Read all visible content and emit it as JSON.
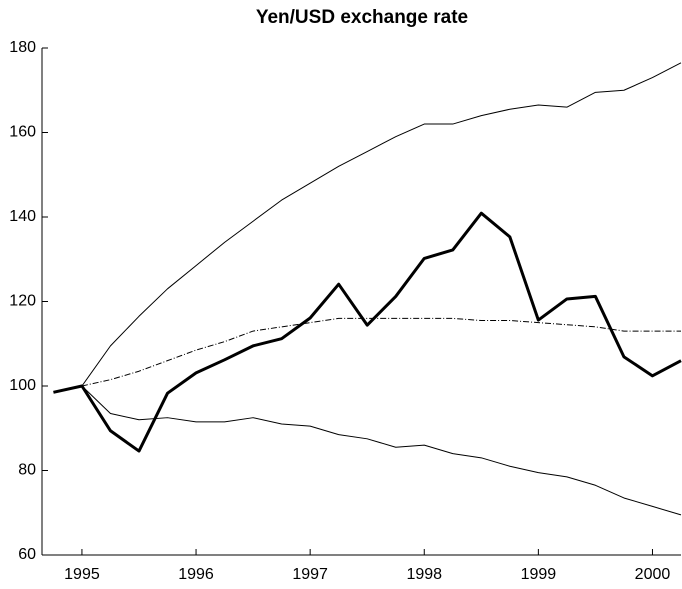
{
  "chart_data": {
    "type": "line",
    "title": "Yen/USD exchange rate",
    "x": [
      1994.75,
      1995,
      1995.25,
      1995.5,
      1995.75,
      1996,
      1996.25,
      1996.5,
      1996.75,
      1997,
      1997.25,
      1997.5,
      1997.75,
      1998,
      1998.25,
      1998.5,
      1998.75,
      1999,
      1999.25,
      1999.5,
      1999.75,
      2000,
      2000.25
    ],
    "series": [
      {
        "color": "#000000",
        "width": 3,
        "dash": "none",
        "values": [
          98.5,
          100,
          89.4,
          84.6,
          98.3,
          103.1,
          106.2,
          109.5,
          111.2,
          116.1,
          124.1,
          114.4,
          121.2,
          130.2,
          132.2,
          140.9,
          135.3,
          115.6,
          120.6,
          121.2,
          106.9,
          102.4,
          106
        ]
      },
      {
        "color": "#000000",
        "width": 1,
        "dash": "none",
        "values": [
          null,
          100,
          109.5,
          116.5,
          123,
          128.5,
          134,
          139,
          144,
          148,
          152,
          155.5,
          159,
          162,
          162,
          164,
          165.5,
          166.5,
          166,
          169.5,
          170,
          173,
          176.5
        ]
      },
      {
        "color": "#000000",
        "width": 1,
        "dash": "none",
        "values": [
          null,
          100,
          93.5,
          92,
          92.5,
          91.5,
          91.5,
          92.5,
          91,
          90.5,
          88.5,
          87.5,
          85.5,
          86,
          84,
          83,
          81,
          79.5,
          78.5,
          76.5,
          73.5,
          71.5,
          69.5
        ]
      },
      {
        "color": "#000000",
        "width": 1,
        "dash": "6 2 1 2",
        "values": [
          null,
          100,
          101.5,
          103.5,
          106,
          108.5,
          110.5,
          113,
          114,
          115,
          116,
          116,
          116,
          116,
          116,
          115.5,
          115.5,
          115,
          114.5,
          114,
          113,
          113,
          113
        ]
      }
    ],
    "xlim": [
      1994.65,
      2000.25
    ],
    "xticks": [
      1995,
      1996,
      1997,
      1998,
      1999,
      2000
    ],
    "ylim": [
      60,
      180
    ],
    "yticks": [
      60,
      80,
      100,
      120,
      140,
      160,
      180
    ],
    "grid": false
  }
}
